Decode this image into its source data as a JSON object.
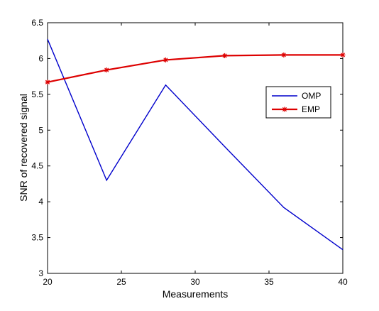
{
  "chart_data": {
    "type": "line",
    "xlabel": "Measurements",
    "ylabel": "SNR of recovered signal",
    "xlim": [
      20,
      40
    ],
    "ylim": [
      3,
      6.5
    ],
    "xticks": [
      "20",
      "25",
      "30",
      "35",
      "40"
    ],
    "yticks": [
      "3",
      "3.5",
      "4",
      "4.5",
      "5",
      "5.5",
      "6",
      "6.5"
    ],
    "grid": false,
    "legend_position": "right",
    "series": [
      {
        "name": "OMP",
        "color": "#0000cc",
        "marker": "none",
        "x": [
          20,
          24,
          28,
          32,
          36,
          40
        ],
        "y": [
          6.27,
          4.3,
          5.63,
          4.77,
          3.92,
          3.33
        ]
      },
      {
        "name": "EMP",
        "color": "#dd0000",
        "marker": "star",
        "x": [
          20,
          24,
          28,
          32,
          36,
          40
        ],
        "y": [
          5.67,
          5.84,
          5.98,
          6.04,
          6.05,
          6.05
        ]
      }
    ]
  }
}
